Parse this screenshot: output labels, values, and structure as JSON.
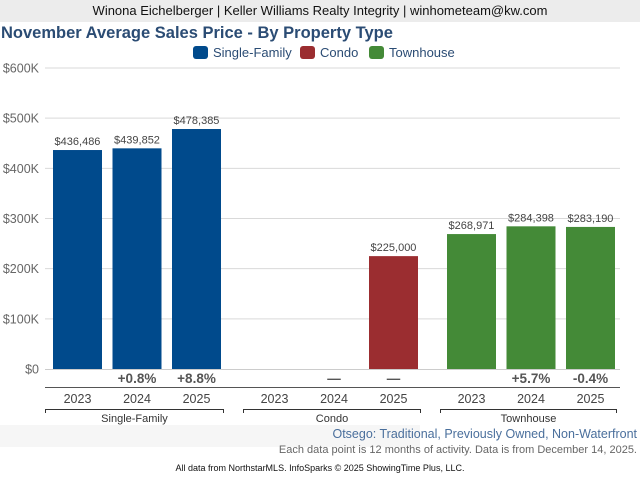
{
  "header": {
    "agent_line": "Winona Eichelberger | Keller Williams Realty Integrity | winhometeam@kw.com"
  },
  "chart_data": {
    "type": "bar",
    "title": "November Average Sales Price - By Property Type",
    "xlabel": "",
    "ylabel": "",
    "ylim": [
      0,
      600000
    ],
    "yticks": [
      0,
      100000,
      200000,
      300000,
      400000,
      500000,
      600000
    ],
    "ytick_labels": [
      "$0",
      "$100K",
      "$200K",
      "$300K",
      "$400K",
      "$500K",
      "$600K"
    ],
    "grid": true,
    "legend_position": "top-center",
    "groups": [
      "Single-Family",
      "Condo",
      "Townhouse"
    ],
    "categories": [
      "2023",
      "2024",
      "2025"
    ],
    "series": [
      {
        "name": "Single-Family",
        "color": "#004a8c",
        "values": [
          436486,
          439852,
          478385
        ],
        "labels": [
          "$436,486",
          "$439,852",
          "$478,385"
        ],
        "changes": [
          "",
          "+0.8%",
          "+8.8%"
        ]
      },
      {
        "name": "Condo",
        "color": "#9b2d30",
        "values": [
          null,
          null,
          225000
        ],
        "labels": [
          "",
          "",
          "$225,000"
        ],
        "changes": [
          "",
          "—",
          "—"
        ]
      },
      {
        "name": "Townhouse",
        "color": "#448a37",
        "values": [
          268971,
          284398,
          283190
        ],
        "labels": [
          "$268,971",
          "$284,398",
          "$283,190"
        ],
        "changes": [
          "",
          "+5.7%",
          "-0.4%"
        ]
      }
    ]
  },
  "footer": {
    "subtitle": "Otsego: Traditional, Previously Owned, Non-Waterfront",
    "note": "Each data point is 12 months of activity. Data is from December 14, 2025.",
    "credit": "All data from NorthstarMLS. InfoSparks © 2025 ShowingTime Plus, LLC."
  }
}
